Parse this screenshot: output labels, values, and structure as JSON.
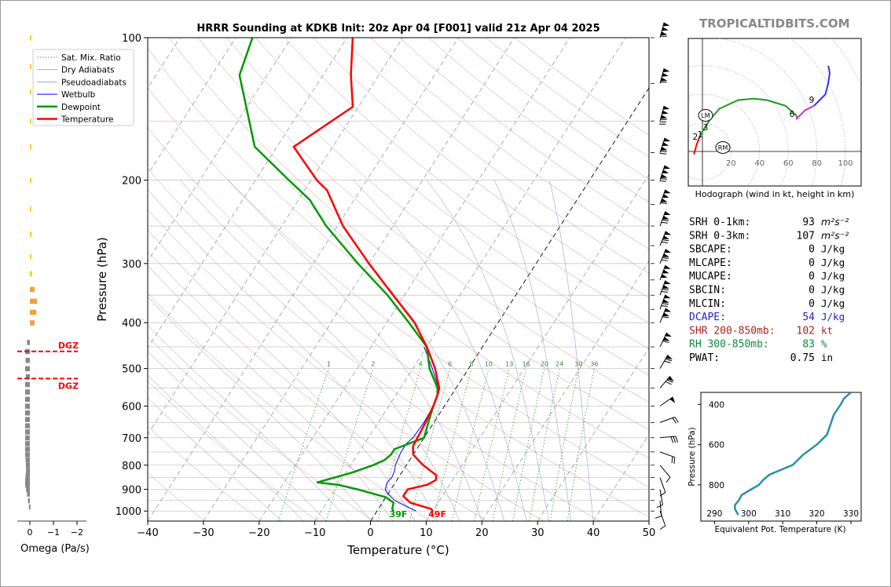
{
  "brand": "TROPICALTIDBITS.COM",
  "chart_data": {
    "type": "skew-t",
    "title": "HRRR Sounding at KDKB Init: 20z Apr 04 [F001] valid 21z Apr 04 2025",
    "xlabel": "Temperature (°C)",
    "ylabel": "Pressure (hPa)",
    "xlim": [
      -40,
      50
    ],
    "ylim": [
      1050,
      100
    ],
    "x_ticks": [
      "−40",
      "−30",
      "−20",
      "−10",
      "0",
      "10",
      "20",
      "30",
      "40",
      "50"
    ],
    "y_ticks": [
      "100",
      "200",
      "300",
      "400",
      "500",
      "600",
      "700",
      "800",
      "900",
      "1000"
    ],
    "legend": {
      "placement": "top-left",
      "entries": [
        "Sat. Mix. Ratio",
        "Dry Adiabats",
        "Pseudoadiabats",
        "Wetbulb",
        "Dewpoint",
        "Temperature"
      ]
    },
    "mixing_ratio_labels": [
      "1",
      "2",
      "4",
      "6",
      "8",
      "10",
      "13",
      "16",
      "20",
      "24",
      "30",
      "36"
    ],
    "surface_labels": {
      "dewpoint": "39F",
      "temperature": "49F"
    },
    "temperature": {
      "name": "Temperature",
      "color": "#ff0000",
      "p": [
        1000,
        990,
        960,
        930,
        900,
        880,
        860,
        840,
        800,
        780,
        760,
        730,
        700,
        650,
        600,
        570,
        550,
        500,
        450,
        400,
        350,
        300,
        250,
        210,
        200,
        170,
        140,
        120,
        100
      ],
      "t": [
        10,
        9.5,
        5,
        3,
        3,
        6,
        7,
        6.5,
        3,
        1.5,
        0,
        -1,
        -1.2,
        -1.5,
        -2,
        -2.5,
        -3,
        -6,
        -10,
        -15,
        -22,
        -30,
        -39,
        -46,
        -49,
        -57,
        -51,
        -55,
        -59
      ]
    },
    "dewpoint": {
      "name": "Dewpoint",
      "color": "#009900",
      "p": [
        1000,
        990,
        960,
        935,
        900,
        880,
        870,
        830,
        800,
        780,
        760,
        740,
        730,
        700,
        650,
        600,
        570,
        550,
        500,
        450,
        400,
        350,
        300,
        250,
        220,
        200,
        170,
        120,
        100
      ],
      "t": [
        3,
        2.5,
        2,
        0,
        -6,
        -10,
        -14,
        -9,
        -6,
        -4.5,
        -4,
        -4,
        -3,
        0,
        -1,
        -2,
        -2.5,
        -3.3,
        -7,
        -10,
        -16,
        -23,
        -32,
        -42,
        -48,
        -54,
        -64,
        -75,
        -77
      ]
    },
    "wetbulb": {
      "name": "Wetbulb",
      "color": "#0000ff",
      "p": [
        1000,
        980,
        950,
        920,
        900,
        870,
        850,
        820,
        800,
        780,
        750,
        720,
        700,
        650,
        600,
        570,
        550,
        500,
        450
      ],
      "t": [
        7,
        5,
        2,
        0,
        -1,
        -1.5,
        -1.2,
        -1.5,
        -2,
        -2.2,
        -2.5,
        -2.5,
        -2,
        -1.8,
        -2,
        -2.5,
        -3.1,
        -6.5,
        -10.5
      ]
    },
    "omega": {
      "xlabel": "Omega (Pa/s)",
      "x_ticks": [
        "0",
        "−1",
        "−2"
      ],
      "dgz_label": "DGZ",
      "dgz_p": [
        460,
        525
      ],
      "p": [
        100,
        115,
        130,
        150,
        170,
        200,
        230,
        260,
        290,
        315,
        340,
        360,
        380,
        400,
        440,
        460,
        480,
        500,
        520,
        540,
        560,
        580,
        600,
        620,
        640,
        660,
        680,
        700,
        720,
        740,
        760,
        780,
        800,
        820,
        840,
        860,
        880,
        900,
        920,
        950,
        980
      ],
      "value": [
        -0.05,
        -0.06,
        -0.05,
        -0.05,
        -0.03,
        -0.03,
        -0.04,
        -0.08,
        -0.07,
        -0.1,
        -0.2,
        -0.3,
        -0.27,
        -0.2,
        0.12,
        0.2,
        0.18,
        0.2,
        0.17,
        0.2,
        0.2,
        0.2,
        0.2,
        0.2,
        0.2,
        0.2,
        0.2,
        0.2,
        0.2,
        0.2,
        0.2,
        0.18,
        0.17,
        0.16,
        0.18,
        0.2,
        0.2,
        0.16,
        0.12,
        0.08,
        0.04
      ]
    },
    "winds": {
      "p": [
        100,
        125,
        150,
        175,
        200,
        225,
        250,
        275,
        300,
        325,
        350,
        375,
        400,
        450,
        500,
        550,
        600,
        650,
        700,
        750,
        800,
        850,
        900,
        950,
        1000
      ]
    },
    "hodograph": {
      "caption": "Hodograph (wind in kt, height in km)",
      "x_ticks": [
        "20",
        "40",
        "60",
        "80",
        "100"
      ],
      "height_labels": [
        "1",
        "2",
        "3",
        "6",
        "9"
      ],
      "motion_labels": [
        "LM",
        "RM"
      ],
      "u": [
        -6,
        -4,
        -2,
        0,
        2,
        5,
        12,
        25,
        36,
        45,
        58,
        66,
        66,
        72,
        78,
        86,
        88,
        89,
        88
      ],
      "v": [
        -2,
        5,
        10,
        14,
        17,
        22,
        30,
        36,
        37,
        36,
        32,
        25,
        23,
        29,
        32,
        40,
        48,
        55,
        60
      ]
    },
    "indices": [
      {
        "label": "SRH 0-1km:",
        "value": "93",
        "unit": "m²s⁻²",
        "color": "#000000"
      },
      {
        "label": "SRH 0-3km:",
        "value": "107",
        "unit": "m²s⁻²",
        "color": "#000000"
      },
      {
        "label": "SBCAPE:",
        "value": "0",
        "unit": "J/kg",
        "color": "#000000"
      },
      {
        "label": "MLCAPE:",
        "value": "0",
        "unit": "J/kg",
        "color": "#000000"
      },
      {
        "label": "MUCAPE:",
        "value": "0",
        "unit": "J/kg",
        "color": "#000000"
      },
      {
        "label": "SBCIN:",
        "value": "0",
        "unit": "J/kg",
        "color": "#000000"
      },
      {
        "label": "MLCIN:",
        "value": "0",
        "unit": "J/kg",
        "color": "#000000"
      },
      {
        "label": "DCAPE:",
        "value": "54",
        "unit": "J/kg",
        "color": "#2222cc"
      },
      {
        "label": "SHR 200-850mb:",
        "value": "102",
        "unit": "kt",
        "color": "#aa2222"
      },
      {
        "label": "RH 300-850mb:",
        "value": "83",
        "unit": "%",
        "color": "#118844"
      },
      {
        "label": "PWAT:",
        "value": "0.75",
        "unit": "in",
        "color": "#000000"
      }
    ],
    "theta_e": {
      "xlabel": "Equivalent Pot. Temperature (K)",
      "ylabel": "Pressure (hPa)",
      "x_ticks": [
        "290",
        "300",
        "310",
        "320",
        "330"
      ],
      "y_ticks": [
        "400",
        "600",
        "800"
      ],
      "xlim": [
        286,
        333
      ],
      "ylim": [
        980,
        340
      ],
      "color": "#2b90a8",
      "p": [
        340,
        370,
        400,
        450,
        500,
        550,
        600,
        650,
        700,
        750,
        780,
        800,
        820,
        850,
        880,
        900,
        920,
        950
      ],
      "theta": [
        330,
        328,
        327,
        325,
        324,
        323,
        320,
        316,
        313,
        306,
        304,
        303,
        301,
        298,
        297,
        296,
        296,
        297
      ]
    }
  }
}
